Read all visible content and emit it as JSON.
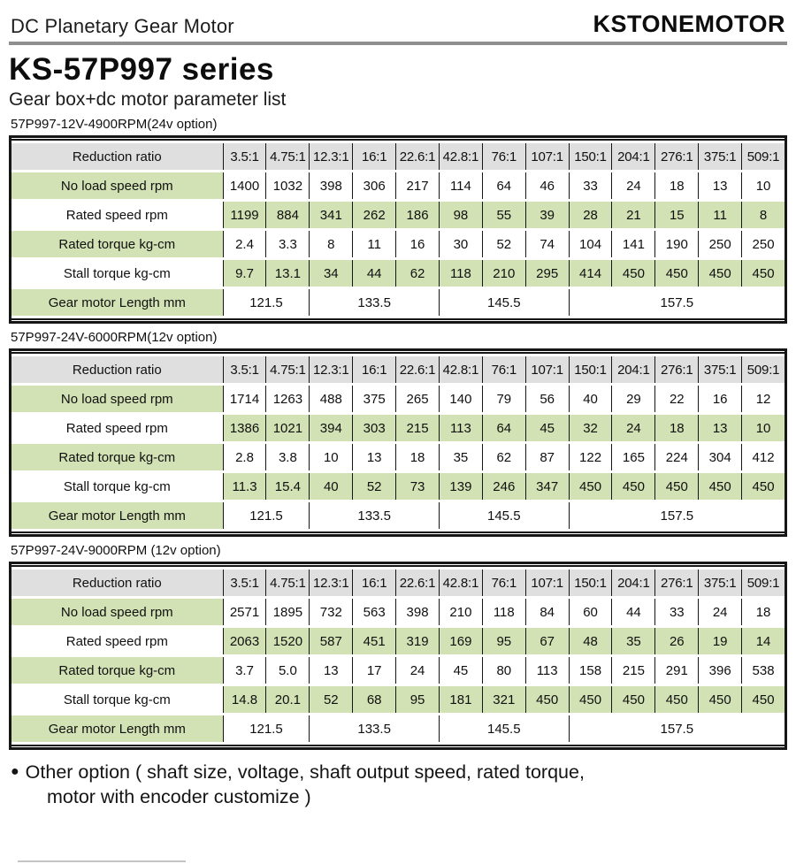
{
  "header": {
    "doc_type": "DC Planetary Gear Motor",
    "brand": "KSTONEMOTOR"
  },
  "title": "KS-57P997 series",
  "subtitle": "Gear box+dc motor parameter list",
  "tables": [
    {
      "label": "57P997-12V-4900RPM(24v option)",
      "corner_header": "Reduction ratio",
      "ratios": [
        "3.5:1",
        "4.75:1",
        "12.3:1",
        "16:1",
        "22.6:1",
        "42.8:1",
        "76:1",
        "107:1",
        "150:1",
        "204:1",
        "276:1",
        "375:1",
        "509:1"
      ],
      "rows": [
        {
          "label": "No load speed rpm",
          "values": [
            "1400",
            "1032",
            "398",
            "306",
            "217",
            "114",
            "64",
            "46",
            "33",
            "24",
            "18",
            "13",
            "10"
          ]
        },
        {
          "label": "Rated speed rpm",
          "values": [
            "1199",
            "884",
            "341",
            "262",
            "186",
            "98",
            "55",
            "39",
            "28",
            "21",
            "15",
            "11",
            "8"
          ]
        },
        {
          "label": "Rated torque kg-cm",
          "values": [
            "2.4",
            "3.3",
            "8",
            "11",
            "16",
            "30",
            "52",
            "74",
            "104",
            "141",
            "190",
            "250",
            "250"
          ]
        },
        {
          "label": "Stall torque kg-cm",
          "values": [
            "9.7",
            "13.1",
            "34",
            "44",
            "62",
            "118",
            "210",
            "295",
            "414",
            "450",
            "450",
            "450",
            "450"
          ]
        }
      ],
      "length_row": {
        "label": "Gear motor Length mm",
        "groups": [
          {
            "value": "121.5",
            "span": 2
          },
          {
            "value": "133.5",
            "span": 3
          },
          {
            "value": "145.5",
            "span": 3
          },
          {
            "value": "157.5",
            "span": 5
          }
        ]
      }
    },
    {
      "label": "57P997-24V-6000RPM(12v option)",
      "corner_header": "Reduction ratio",
      "ratios": [
        "3.5:1",
        "4.75:1",
        "12.3:1",
        "16:1",
        "22.6:1",
        "42.8:1",
        "76:1",
        "107:1",
        "150:1",
        "204:1",
        "276:1",
        "375:1",
        "509:1"
      ],
      "rows": [
        {
          "label": "No load speed rpm",
          "values": [
            "1714",
            "1263",
            "488",
            "375",
            "265",
            "140",
            "79",
            "56",
            "40",
            "29",
            "22",
            "16",
            "12"
          ]
        },
        {
          "label": "Rated speed rpm",
          "values": [
            "1386",
            "1021",
            "394",
            "303",
            "215",
            "113",
            "64",
            "45",
            "32",
            "24",
            "18",
            "13",
            "10"
          ]
        },
        {
          "label": "Rated torque kg-cm",
          "values": [
            "2.8",
            "3.8",
            "10",
            "13",
            "18",
            "35",
            "62",
            "87",
            "122",
            "165",
            "224",
            "304",
            "412"
          ]
        },
        {
          "label": "Stall torque kg-cm",
          "values": [
            "11.3",
            "15.4",
            "40",
            "52",
            "73",
            "139",
            "246",
            "347",
            "450",
            "450",
            "450",
            "450",
            "450"
          ]
        }
      ],
      "length_row": {
        "label": "Gear motor Length mm",
        "groups": [
          {
            "value": "121.5",
            "span": 2
          },
          {
            "value": "133.5",
            "span": 3
          },
          {
            "value": "145.5",
            "span": 3
          },
          {
            "value": "157.5",
            "span": 5
          }
        ]
      }
    },
    {
      "label": "57P997-24V-9000RPM (12v option)",
      "corner_header": "Reduction ratio",
      "ratios": [
        "3.5:1",
        "4.75:1",
        "12.3:1",
        "16:1",
        "22.6:1",
        "42.8:1",
        "76:1",
        "107:1",
        "150:1",
        "204:1",
        "276:1",
        "375:1",
        "509:1"
      ],
      "rows": [
        {
          "label": "No load speed rpm",
          "values": [
            "2571",
            "1895",
            "732",
            "563",
            "398",
            "210",
            "118",
            "84",
            "60",
            "44",
            "33",
            "24",
            "18"
          ]
        },
        {
          "label": "Rated speed rpm",
          "values": [
            "2063",
            "1520",
            "587",
            "451",
            "319",
            "169",
            "95",
            "67",
            "48",
            "35",
            "26",
            "19",
            "14"
          ]
        },
        {
          "label": "Rated torque kg-cm",
          "values": [
            "3.7",
            "5.0",
            "13",
            "17",
            "24",
            "45",
            "80",
            "113",
            "158",
            "215",
            "291",
            "396",
            "538"
          ]
        },
        {
          "label": "Stall torque kg-cm",
          "values": [
            "14.8",
            "20.1",
            "52",
            "68",
            "95",
            "181",
            "321",
            "450",
            "450",
            "450",
            "450",
            "450",
            "450"
          ]
        }
      ],
      "length_row": {
        "label": "Gear motor Length mm",
        "groups": [
          {
            "value": "121.5",
            "span": 2
          },
          {
            "value": "133.5",
            "span": 3
          },
          {
            "value": "145.5",
            "span": 3
          },
          {
            "value": "157.5",
            "span": 5
          }
        ]
      }
    }
  ],
  "footer": {
    "bullet": "●",
    "line1": "Other option ( shaft size, voltage, shaft output speed, rated torque,",
    "line2": "motor with encoder customize )"
  },
  "colors": {
    "row_green": "#d2e2b4",
    "header_gray": "#dfdfdf",
    "table_border": "#161616",
    "rule_gray": "#8f8f8f"
  }
}
